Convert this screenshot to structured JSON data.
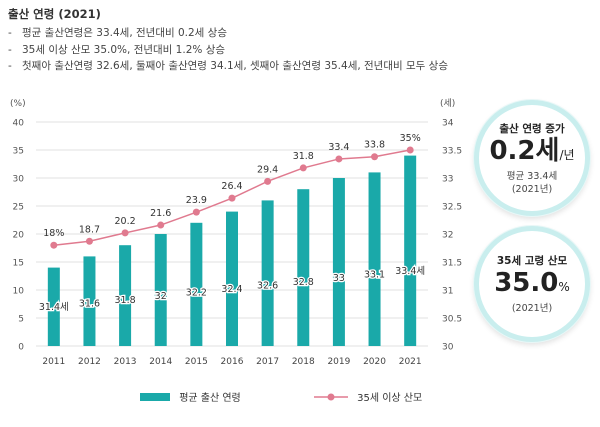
{
  "header": {
    "title": "출산 연령 (2021)",
    "bullets": [
      "평균 출산연령은 33.4세, 전년대비 0.2세 상승",
      "35세 이상 산모 35.0%, 전년대비 1.2% 상승",
      "첫째아 출산연령 32.6세, 둘째아 출산연령 34.1세, 셋째아 출산연령 35.4세, 전년대비 모두 상승"
    ],
    "dash": "-"
  },
  "badges": [
    {
      "title": "출산 연령 증가",
      "value": "0.2세",
      "unit": "/년",
      "sub1": "평균 33.4세",
      "sub2": "(2021년)"
    },
    {
      "title": "35세 고령 산모",
      "value": "35.0",
      "unit": "%",
      "sub1": "(2021년)",
      "sub2": ""
    }
  ],
  "colors": {
    "bar": "#1aa9a9",
    "line": "#e07a8f",
    "grid": "#d9d9d9",
    "badge_ring": "#c9eeee"
  },
  "chart_data": {
    "type": "bar",
    "categories": [
      "2011",
      "2012",
      "2013",
      "2014",
      "2015",
      "2016",
      "2017",
      "2018",
      "2019",
      "2020",
      "2021"
    ],
    "left_unit": "(%)",
    "right_unit": "(세)",
    "left_ticks": [
      "0",
      "5",
      "10",
      "15",
      "20",
      "25",
      "30",
      "35",
      "40"
    ],
    "right_ticks": [
      "30",
      "30.5",
      "31",
      "31.5",
      "32",
      "32.5",
      "33",
      "33.5",
      "34"
    ],
    "ylim_left": [
      0,
      40
    ],
    "ylim_right": [
      30,
      34
    ],
    "series": [
      {
        "name": "평균 출산 연령",
        "axis": "right",
        "kind": "bar",
        "values": [
          31.4,
          31.6,
          31.8,
          32.0,
          32.2,
          32.4,
          32.6,
          32.8,
          33.0,
          33.1,
          33.4
        ],
        "labels": [
          "31.4세",
          "31.6",
          "31.8",
          "32",
          "32.2",
          "32.4",
          "32.6",
          "32.8",
          "33",
          "33.1",
          "33.4세"
        ]
      },
      {
        "name": "35세 이상 산모",
        "axis": "left",
        "kind": "line",
        "values": [
          18.0,
          18.7,
          20.2,
          21.6,
          23.9,
          26.4,
          29.4,
          31.8,
          33.4,
          33.8,
          35.0
        ],
        "labels": [
          "18%",
          "18.7",
          "20.2",
          "21.6",
          "23.9",
          "26.4",
          "29.4",
          "31.8",
          "33.4",
          "33.8",
          "35%"
        ]
      }
    ]
  }
}
